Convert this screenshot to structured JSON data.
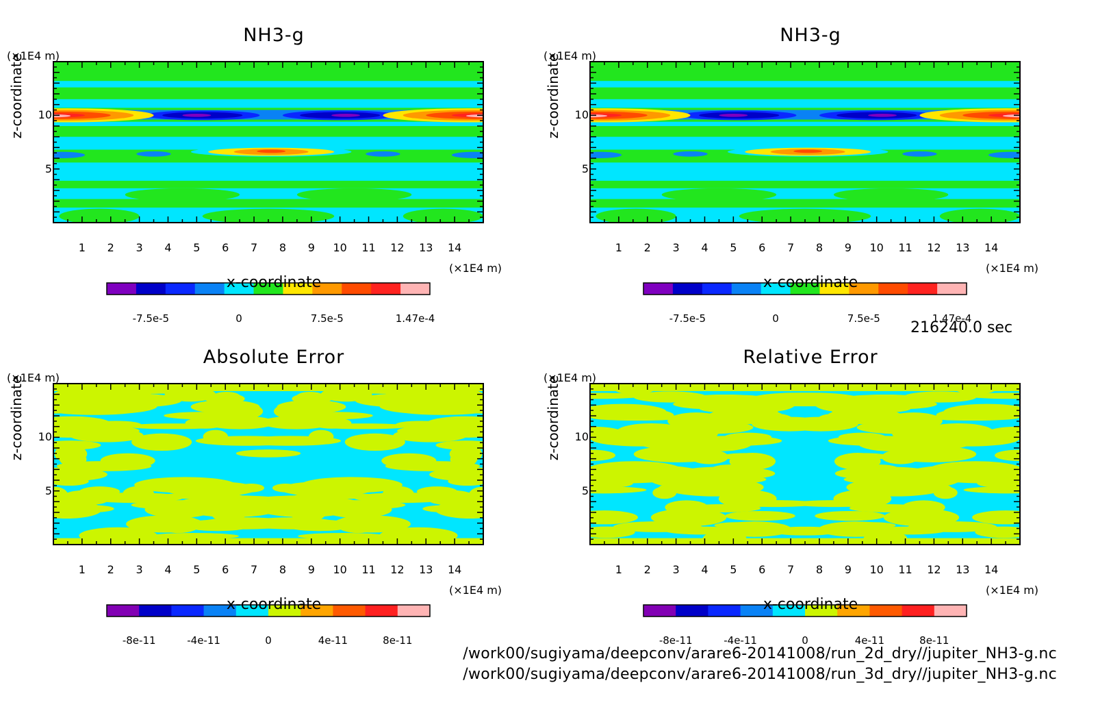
{
  "chart_data": [
    {
      "type": "heatmap",
      "title": "NH3-g",
      "xlabel": "x-coordinate",
      "ylabel": "z-coordinate",
      "x_unit": "(×1E4 m)",
      "y_unit": "(×1E4 m)",
      "xlim": [
        0,
        15
      ],
      "ylim": [
        0,
        15
      ],
      "xticks": [
        "1",
        "2",
        "3",
        "4",
        "5",
        "6",
        "7",
        "8",
        "9",
        "10",
        "11",
        "12",
        "13",
        "14"
      ],
      "yticks": [
        "5",
        "10"
      ],
      "colorbar": {
        "colors": [
          "#7f00bf",
          "#0000c8",
          "#0a28ff",
          "#0a82f5",
          "#00e6ff",
          "#22e61e",
          "#ffe600",
          "#ff9900",
          "#ff4b00",
          "#ff2320",
          "#ffb4b4"
        ],
        "tick_labels": [
          "-7.5e-5",
          "0",
          "7.5e-5",
          "1.47e-4"
        ]
      },
      "field": "nh3"
    },
    {
      "type": "heatmap",
      "title": "NH3-g",
      "xlabel": "x-coordinate",
      "ylabel": "z-coordinate",
      "x_unit": "(×1E4 m)",
      "y_unit": "(×1E4 m)",
      "xlim": [
        0,
        15
      ],
      "ylim": [
        0,
        15
      ],
      "xticks": [
        "1",
        "2",
        "3",
        "4",
        "5",
        "6",
        "7",
        "8",
        "9",
        "10",
        "11",
        "12",
        "13",
        "14"
      ],
      "yticks": [
        "5",
        "10"
      ],
      "colorbar": {
        "colors": [
          "#7f00bf",
          "#0000c8",
          "#0a28ff",
          "#0a82f5",
          "#00e6ff",
          "#22e61e",
          "#ffe600",
          "#ff9900",
          "#ff4b00",
          "#ff2320",
          "#ffb4b4"
        ],
        "tick_labels": [
          "-7.5e-5",
          "0",
          "7.5e-5",
          "1.47e-4"
        ]
      },
      "field": "nh3"
    },
    {
      "type": "heatmap",
      "title": "Absolute Error",
      "xlabel": "x-coordinate",
      "ylabel": "z-coordinate",
      "x_unit": "(×1E4 m)",
      "y_unit": "(×1E4 m)",
      "xlim": [
        0,
        15
      ],
      "ylim": [
        0,
        15
      ],
      "xticks": [
        "1",
        "2",
        "3",
        "4",
        "5",
        "6",
        "7",
        "8",
        "9",
        "10",
        "11",
        "12",
        "13",
        "14"
      ],
      "yticks": [
        "5",
        "10"
      ],
      "colorbar": {
        "colors": [
          "#8200b4",
          "#0000c8",
          "#0a28ff",
          "#0a82f5",
          "#00e6ff",
          "#ccf500",
          "#ffa500",
          "#ff5a00",
          "#ff2020",
          "#ffb4b4"
        ],
        "tick_labels": [
          "-8e-11",
          "-4e-11",
          "0",
          "4e-11",
          "8e-11"
        ]
      },
      "field": "err"
    },
    {
      "type": "heatmap",
      "title": "Relative Error",
      "xlabel": "x-coordinate",
      "ylabel": "z-coordinate",
      "x_unit": "(×1E4 m)",
      "y_unit": "(×1E4 m)",
      "xlim": [
        0,
        15
      ],
      "ylim": [
        0,
        15
      ],
      "xticks": [
        "1",
        "2",
        "3",
        "4",
        "5",
        "6",
        "7",
        "8",
        "9",
        "10",
        "11",
        "12",
        "13",
        "14"
      ],
      "yticks": [
        "5",
        "10"
      ],
      "colorbar": {
        "colors": [
          "#8200b4",
          "#0000c8",
          "#0a28ff",
          "#0a82f5",
          "#00e6ff",
          "#ccf500",
          "#ffa500",
          "#ff5a00",
          "#ff2020",
          "#ffb4b4"
        ],
        "tick_labels": [
          "-8e-11",
          "-4e-11",
          "0",
          "4e-11",
          "8e-11"
        ]
      },
      "field": "err2"
    }
  ],
  "time_label": "216240.0 sec",
  "file_paths": [
    "/work00/sugiyama/deepconv/arare6-20141008/run_2d_dry//jupiter_NH3-g.nc",
    "/work00/sugiyama/deepconv/arare6-20141008/run_3d_dry//jupiter_NH3-g.nc"
  ]
}
